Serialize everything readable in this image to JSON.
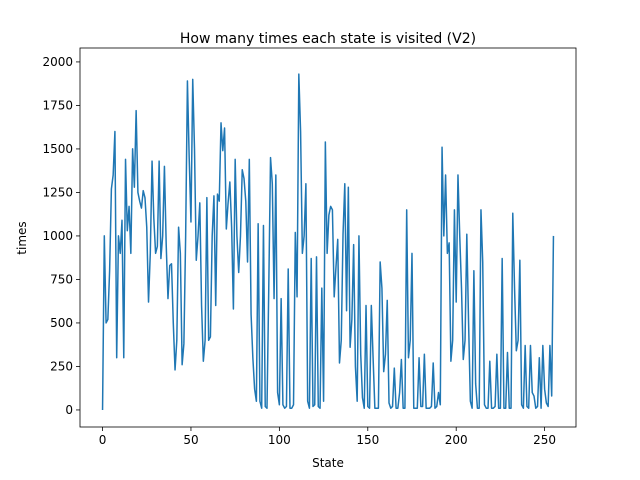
{
  "chart_data": {
    "type": "line",
    "title": "How many times each state is visited (V2)",
    "x_label": "State",
    "y_label": "times",
    "color": "#1f77b4",
    "x": [
      0,
      1,
      2,
      3,
      4,
      5,
      6,
      7,
      8,
      9,
      10,
      11,
      12,
      13,
      14,
      15,
      16,
      17,
      18,
      19,
      20,
      21,
      22,
      23,
      24,
      25,
      26,
      27,
      28,
      29,
      30,
      31,
      32,
      33,
      34,
      35,
      36,
      37,
      38,
      39,
      40,
      41,
      42,
      43,
      44,
      45,
      46,
      47,
      48,
      49,
      50,
      51,
      52,
      53,
      54,
      55,
      56,
      57,
      58,
      59,
      60,
      61,
      62,
      63,
      64,
      65,
      66,
      67,
      68,
      69,
      70,
      71,
      72,
      73,
      74,
      75,
      76,
      77,
      78,
      79,
      80,
      81,
      82,
      83,
      84,
      85,
      86,
      87,
      88,
      89,
      90,
      91,
      92,
      93,
      94,
      95,
      96,
      97,
      98,
      99,
      100,
      101,
      102,
      103,
      104,
      105,
      106,
      107,
      108,
      109,
      110,
      111,
      112,
      113,
      114,
      115,
      116,
      117,
      118,
      119,
      120,
      121,
      122,
      123,
      124,
      125,
      126,
      127,
      128,
      129,
      130,
      131,
      132,
      133,
      134,
      135,
      136,
      137,
      138,
      139,
      140,
      141,
      142,
      143,
      144,
      145,
      146,
      147,
      148,
      149,
      150,
      151,
      152,
      153,
      154,
      155,
      156,
      157,
      158,
      159,
      160,
      161,
      162,
      163,
      164,
      165,
      166,
      167,
      168,
      169,
      170,
      171,
      172,
      173,
      174,
      175,
      176,
      177,
      178,
      179,
      180,
      181,
      182,
      183,
      184,
      185,
      186,
      187,
      188,
      189,
      190,
      191,
      192,
      193,
      194,
      195,
      196,
      197,
      198,
      199,
      200,
      201,
      202,
      203,
      204,
      205,
      206,
      207,
      208,
      209,
      210,
      211,
      212,
      213,
      214,
      215,
      216,
      217,
      218,
      219,
      220,
      221,
      222,
      223,
      224,
      225,
      226,
      227,
      228,
      229,
      230,
      231,
      232,
      233,
      234,
      235,
      236,
      237,
      238,
      239,
      240,
      241,
      242,
      243,
      244,
      245,
      246,
      247,
      248,
      249,
      250,
      251,
      252,
      253,
      254,
      255
    ],
    "values": [
      0,
      1000,
      500,
      520,
      800,
      1270,
      1350,
      1600,
      300,
      1000,
      900,
      1090,
      300,
      1440,
      1030,
      1170,
      900,
      1500,
      1280,
      1720,
      1250,
      1200,
      1160,
      1260,
      1220,
      1050,
      620,
      900,
      1430,
      1100,
      900,
      940,
      1430,
      870,
      1000,
      1400,
      950,
      640,
      830,
      840,
      500,
      230,
      400,
      1050,
      900,
      260,
      380,
      1000,
      1890,
      1450,
      1080,
      1900,
      1500,
      860,
      1000,
      1190,
      600,
      280,
      400,
      1220,
      400,
      420,
      1000,
      1230,
      600,
      1240,
      1200,
      1650,
      1490,
      1620,
      1040,
      1190,
      1310,
      1050,
      580,
      1440,
      1000,
      790,
      1000,
      1380,
      1330,
      1200,
      850,
      1440,
      550,
      300,
      120,
      50,
      1070,
      50,
      10,
      1060,
      20,
      10,
      700,
      1450,
      1300,
      640,
      1350,
      100,
      30,
      640,
      30,
      10,
      20,
      810,
      10,
      10,
      30,
      1020,
      650,
      1930,
      1600,
      900,
      1000,
      1300,
      50,
      10,
      870,
      20,
      30,
      880,
      20,
      10,
      700,
      50,
      1540,
      900,
      1120,
      1170,
      1150,
      650,
      820,
      980,
      270,
      400,
      1010,
      1300,
      570,
      1280,
      360,
      520,
      950,
      250,
      50,
      1000,
      320,
      70,
      10,
      600,
      20,
      10,
      600,
      300,
      10,
      10,
      10,
      850,
      700,
      220,
      320,
      630,
      40,
      10,
      20,
      240,
      10,
      10,
      100,
      290,
      10,
      10,
      1150,
      300,
      400,
      900,
      10,
      10,
      10,
      300,
      20,
      20,
      320,
      10,
      10,
      10,
      20,
      270,
      10,
      20,
      100,
      30,
      1510,
      1000,
      1350,
      900,
      960,
      280,
      400,
      1150,
      620,
      1350,
      1000,
      700,
      290,
      400,
      1010,
      500,
      50,
      10,
      800,
      150,
      10,
      10,
      1150,
      850,
      30,
      10,
      10,
      280,
      10,
      10,
      20,
      320,
      10,
      10,
      870,
      10,
      10,
      330,
      10,
      10,
      1130,
      700,
      340,
      400,
      860,
      30,
      10,
      370,
      20,
      10,
      370,
      100,
      80,
      10,
      20,
      300,
      10,
      370,
      120,
      40,
      20,
      370,
      80,
      1000
    ],
    "xlim": [
      -12.75,
      267.75
    ],
    "xticks": [
      0,
      50,
      100,
      150,
      200,
      250
    ],
    "ylim": [
      -98,
      2080
    ],
    "yticks": [
      0,
      250,
      500,
      750,
      1000,
      1250,
      1500,
      1750,
      2000
    ]
  }
}
